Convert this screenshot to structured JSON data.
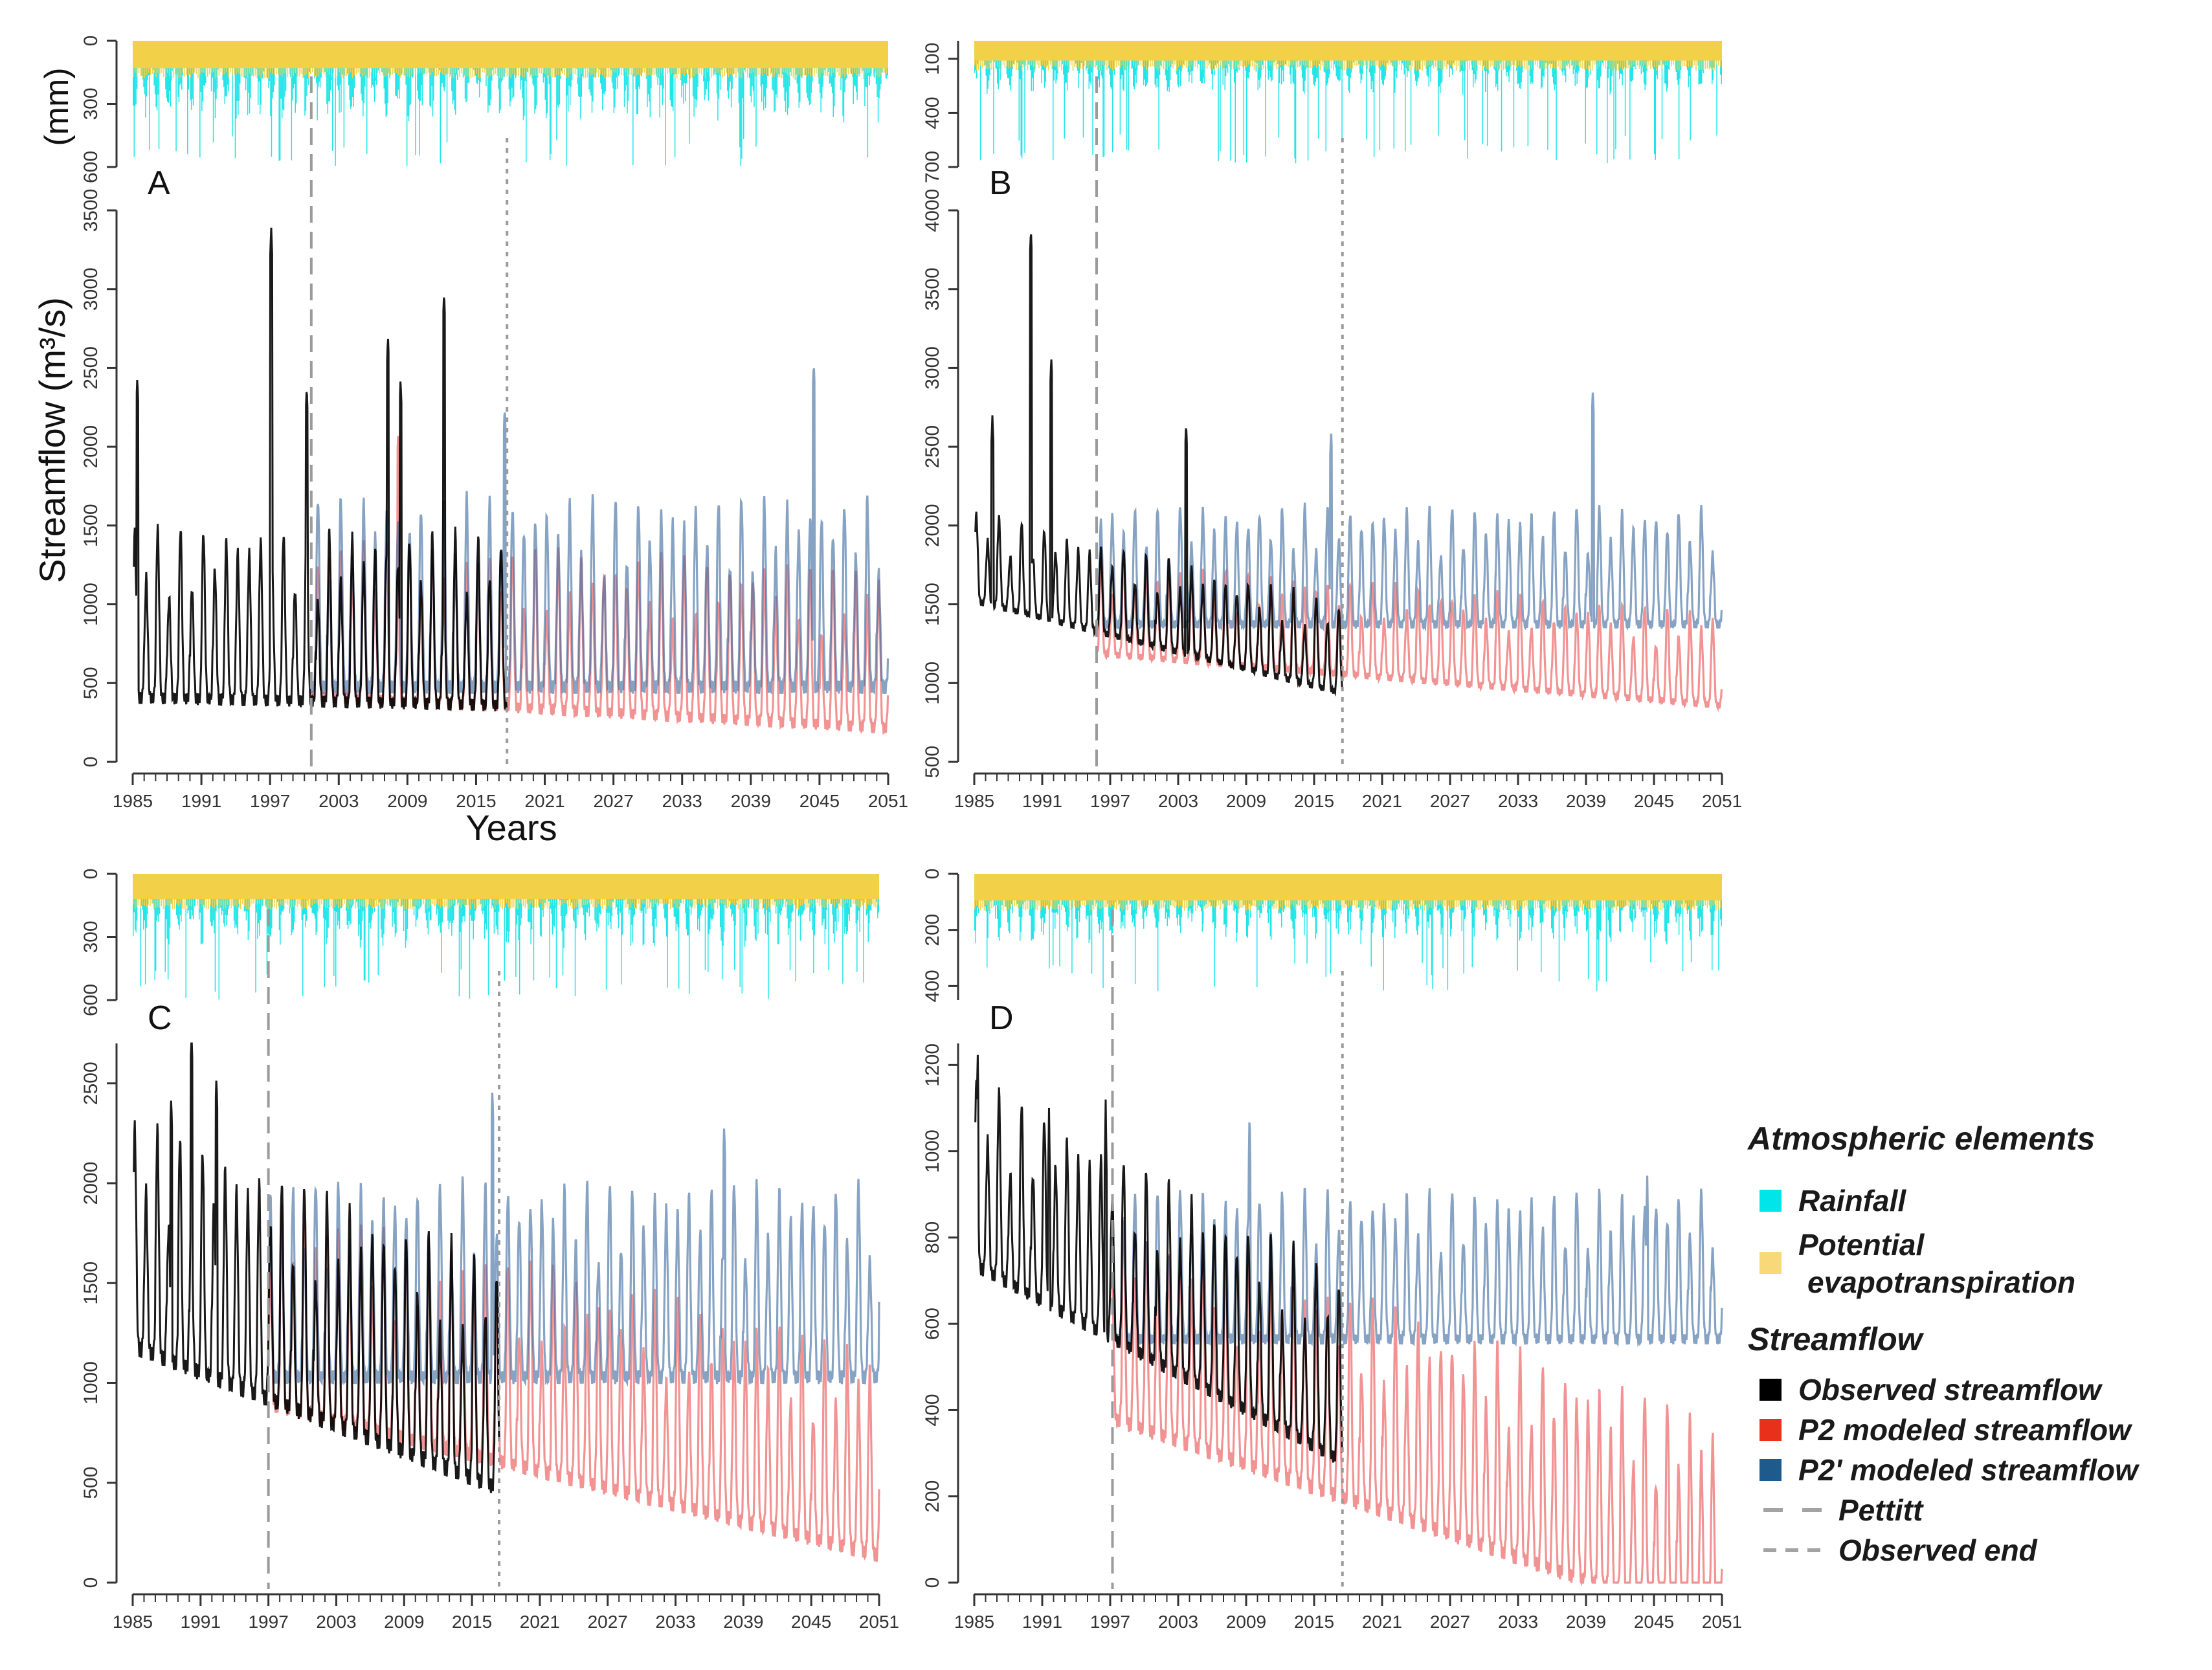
{
  "chart_data": [
    {
      "panel": "A",
      "type": "line",
      "ylabel_top": "(mm)",
      "ylabel": "Streamflow (m³/s)",
      "xlabel": "Years",
      "top_ticks": [
        "0",
        "300",
        "600"
      ],
      "top_ylim": [
        0,
        600
      ],
      "ylim": [
        0,
        3500
      ],
      "yticks": [
        "0",
        "500",
        "1000",
        "1500",
        "2000",
        "2500",
        "3000",
        "3500"
      ],
      "xticks": [
        "1985",
        "1991",
        "1997",
        "2003",
        "2009",
        "2015",
        "2021",
        "2027",
        "2033",
        "2039",
        "2045",
        "2051"
      ],
      "pettitt_year": 2000.6,
      "observed_end_year": 2017.7,
      "observed": {
        "base": 520,
        "amp": 950,
        "trend": -1.5,
        "peaks": [
          [
            1985.4,
            2440
          ],
          [
            1997.1,
            3390
          ],
          [
            2007.3,
            2700
          ],
          [
            2008.4,
            2430
          ],
          [
            2012.2,
            2980
          ],
          [
            2000.2,
            2380
          ]
        ]
      },
      "p2": {
        "base": 520,
        "amp": 880,
        "trend": -4,
        "peaks": [
          [
            2008.2,
            2100
          ]
        ]
      },
      "p2prime": {
        "base": 600,
        "amp": 1050,
        "trend": 0,
        "peaks": [
          [
            2017.5,
            2250
          ],
          [
            2044.5,
            2530
          ]
        ]
      },
      "rain": {
        "mean": 260,
        "peak": 600
      },
      "pet": {
        "value": 130
      }
    },
    {
      "panel": "B",
      "type": "line",
      "top_ticks": [
        "100",
        "400",
        "700"
      ],
      "top_ylim": [
        0,
        700
      ],
      "ylim": [
        500,
        4000
      ],
      "yticks": [
        "500",
        "1000",
        "1500",
        "2000",
        "2500",
        "3000",
        "3500",
        "4000"
      ],
      "xticks": [
        "1985",
        "1991",
        "1997",
        "2003",
        "2009",
        "2015",
        "2021",
        "2027",
        "2033",
        "2039",
        "2045",
        "2051"
      ],
      "pettitt_year": 1995.8,
      "observed_end_year": 2017.5,
      "observed": {
        "base": 1580,
        "amp": 500,
        "trend": -18,
        "peaks": [
          [
            1990.0,
            3880
          ],
          [
            1991.8,
            3070
          ],
          [
            1986.6,
            2700
          ],
          [
            2003.7,
            2650
          ]
        ]
      },
      "p2": {
        "base": 1250,
        "amp": 520,
        "trend": -6,
        "peaks": []
      },
      "p2prime": {
        "base": 1450,
        "amp": 650,
        "trend": 0,
        "peaks": [
          [
            2039.6,
            2860
          ],
          [
            2016.5,
            2600
          ]
        ]
      },
      "rain": {
        "mean": 200,
        "peak": 690
      },
      "pet": {
        "value": 110
      }
    },
    {
      "panel": "C",
      "type": "line",
      "top_ticks": [
        "0",
        "300",
        "600"
      ],
      "top_ylim": [
        0,
        600
      ],
      "ylim": [
        0,
        2700
      ],
      "yticks": [
        "0",
        "500",
        "1000",
        "1500",
        "2000",
        "2500"
      ],
      "xticks": [
        "1985",
        "1991",
        "1997",
        "2003",
        "2009",
        "2015",
        "2021",
        "2027",
        "2033",
        "2039",
        "2045",
        "2051"
      ],
      "pettitt_year": 1997.0,
      "observed_end_year": 2017.4,
      "observed": {
        "base": 1300,
        "amp": 1000,
        "trend": -22,
        "peaks": [
          [
            1990.2,
            2760
          ],
          [
            1992.4,
            2530
          ],
          [
            1988.4,
            2430
          ]
        ]
      },
      "p2": {
        "base": 1000,
        "amp": 900,
        "trend": -14,
        "peaks": []
      },
      "p2prime": {
        "base": 1130,
        "amp": 850,
        "trend": 0,
        "peaks": [
          [
            2016.8,
            2470
          ],
          [
            2037.3,
            2290
          ]
        ]
      },
      "rain": {
        "mean": 240,
        "peak": 600
      },
      "pet": {
        "value": 120
      }
    },
    {
      "panel": "D",
      "type": "line",
      "top_ticks": [
        "0",
        "200",
        "400"
      ],
      "top_ylim": [
        0,
        450
      ],
      "ylim": [
        0,
        1250
      ],
      "yticks": [
        "0",
        "200",
        "400",
        "600",
        "800",
        "1000",
        "1200"
      ],
      "xticks": [
        "1985",
        "1991",
        "1997",
        "2003",
        "2009",
        "2015",
        "2021",
        "2027",
        "2033",
        "2039",
        "2045",
        "2051"
      ],
      "pettitt_year": 1997.2,
      "observed_end_year": 2017.5,
      "observed": {
        "base": 780,
        "amp": 380,
        "trend": -14,
        "peaks": [
          [
            1985.3,
            1240
          ],
          [
            1996.6,
            1120
          ],
          [
            1991.6,
            1100
          ]
        ]
      },
      "p2": {
        "base": 430,
        "amp": 420,
        "trend": -9,
        "peaks": []
      },
      "p2prime": {
        "base": 600,
        "amp": 300,
        "trend": 0,
        "peaks": [
          [
            2009.3,
            1100
          ],
          [
            2044.4,
            960
          ]
        ]
      },
      "rain": {
        "mean": 170,
        "peak": 420
      },
      "pet": {
        "value": 95
      }
    }
  ],
  "legend": {
    "atmos_title": "Atmospheric elements",
    "rainfall": "Rainfall",
    "pet_line1": "Potential",
    "pet_line2": "evapotranspiration",
    "stream_title": "Streamflow",
    "observed": "Observed streamflow",
    "p2": "P2 modeled streamflow",
    "p2prime": "P2' modeled streamflow",
    "pettitt": "Pettitt",
    "observed_end": "Observed end"
  },
  "colors": {
    "rainfall": "#22e5e8",
    "pet": "#f2d148",
    "observed": "#000000",
    "p2": "#f08080",
    "p2prime": "#3e6aa0",
    "pettitt": "#9b9b9b",
    "observed_end": "#9b9b9b",
    "legend_rainfall": "#00e5e8",
    "legend_pet": "#f8d97a",
    "legend_p2": "#e8301a",
    "legend_p2prime": "#1f5a8c"
  }
}
